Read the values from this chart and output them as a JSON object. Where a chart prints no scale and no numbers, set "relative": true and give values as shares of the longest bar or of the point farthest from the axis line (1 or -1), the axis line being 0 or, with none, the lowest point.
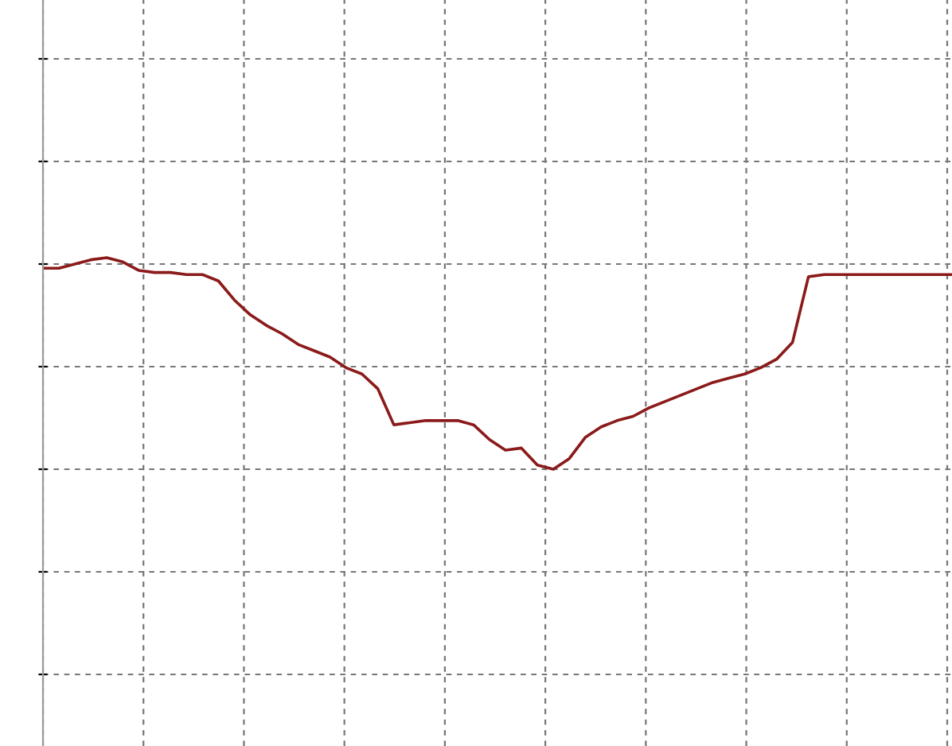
{
  "chart_data": {
    "type": "line",
    "relative": true,
    "grid": true,
    "tick_labels": false,
    "marker": "none",
    "line_style": "solid",
    "categories": [
      null,
      null,
      null,
      null,
      null,
      null,
      null,
      null,
      null,
      null,
      null,
      null,
      null,
      null,
      null,
      null,
      null,
      null,
      null,
      null,
      null,
      null,
      null,
      null,
      null,
      null,
      null,
      null,
      null,
      null,
      null,
      null,
      null,
      null,
      null,
      null,
      null,
      null,
      null,
      null,
      null,
      null,
      null,
      null,
      null,
      null,
      null,
      null,
      null,
      null,
      null,
      null,
      null,
      null,
      null,
      null,
      null,
      null
    ],
    "series": [
      {
        "color": "#8b1a1a",
        "values": [
          0.95,
          0.95,
          0.97,
          0.99,
          1.0,
          0.98,
          0.94,
          0.93,
          0.93,
          0.92,
          0.92,
          0.89,
          0.8,
          0.73,
          0.68,
          0.64,
          0.59,
          0.56,
          0.53,
          0.48,
          0.45,
          0.38,
          0.21,
          0.22,
          0.23,
          0.23,
          0.23,
          0.21,
          0.14,
          0.09,
          0.1,
          0.02,
          0,
          0.05,
          0.15,
          0.2,
          0.23,
          0.25,
          0.29,
          0.32,
          0.35,
          0.38,
          0.41,
          0.43,
          0.45,
          0.48,
          0.52,
          0.6,
          0.91,
          0.92,
          0.92,
          0.92,
          0.92,
          0.92,
          0.92,
          0.92,
          0.92,
          0.92
        ]
      }
    ]
  }
}
